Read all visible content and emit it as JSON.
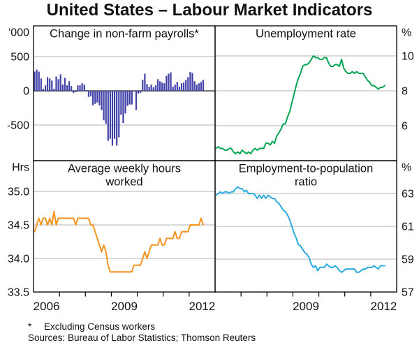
{
  "title": "United States – Labour Market Indicators",
  "footnote": {
    "marker": "*",
    "text": "Excluding Census workers"
  },
  "sources": "Sources: Bureau of Labor Statistics; Thomson Reuters",
  "colors": {
    "bars": "#4040a8",
    "unemployment_line": "#00a651",
    "hours_line": "#f7941e",
    "epr_line": "#29abe2",
    "gridline": "#b3b3b3",
    "axis": "#000000",
    "zero_line": "#4d4d4d"
  },
  "xaxis": {
    "xlim": [
      2006,
      2013
    ],
    "tick_years": [
      2007,
      2008,
      2009,
      2010,
      2011,
      2012
    ],
    "left_labels": [
      {
        "t": 2006.5,
        "label": "2006"
      },
      {
        "t": 2009.5,
        "label": "2009"
      },
      {
        "t": 2012.5,
        "label": "2012"
      }
    ],
    "right_labels": [
      {
        "t": 2009.5,
        "label": "2009"
      },
      {
        "t": 2012.5,
        "label": "2012"
      }
    ]
  },
  "chart_data": [
    {
      "id": "payrolls",
      "type": "bar",
      "position": "top-left",
      "title": "Change in non-farm payrolls*",
      "unit_label": "’000",
      "axis_side": "left",
      "color": "#4040a8",
      "ylim": [
        -1020,
        949
      ],
      "zero_line": true,
      "yticks": [
        {
          "v": 500,
          "label": "500"
        },
        {
          "v": 0,
          "label": "0"
        },
        {
          "v": -500,
          "label": "-500"
        }
      ],
      "x_start": 2006,
      "frequency": "monthly",
      "values": [
        280,
        310,
        280,
        180,
        30,
        80,
        200,
        180,
        150,
        30,
        210,
        170,
        240,
        90,
        190,
        80,
        140,
        70,
        -30,
        -20,
        80,
        80,
        110,
        90,
        10,
        -90,
        -80,
        -210,
        -190,
        -170,
        -210,
        -280,
        -430,
        -480,
        -730,
        -700,
        -800,
        -700,
        -800,
        -680,
        -350,
        -470,
        -330,
        -220,
        -200,
        -200,
        -10,
        -280,
        -40,
        -30,
        160,
        250,
        100,
        60,
        90,
        50,
        80,
        170,
        140,
        120,
        110,
        220,
        250,
        270,
        60,
        90,
        130,
        60,
        110,
        120,
        160,
        200,
        275,
        260,
        140,
        90,
        110,
        130,
        160
      ]
    },
    {
      "id": "unemployment",
      "type": "line",
      "position": "top-right",
      "title": "Unemployment rate",
      "unit_label": "%",
      "axis_side": "right",
      "color": "#00a651",
      "ylim": [
        4,
        11.72
      ],
      "zero_line": false,
      "yticks": [
        {
          "v": 10,
          "label": "10"
        },
        {
          "v": 8,
          "label": "8"
        },
        {
          "v": 6,
          "label": "6"
        }
      ],
      "x_start": 2006,
      "frequency": "monthly",
      "values": [
        4.7,
        4.8,
        4.7,
        4.7,
        4.6,
        4.6,
        4.7,
        4.7,
        4.5,
        4.4,
        4.5,
        4.4,
        4.6,
        4.5,
        4.4,
        4.5,
        4.4,
        4.6,
        4.7,
        4.6,
        4.7,
        4.7,
        4.7,
        5.0,
        5.0,
        4.9,
        5.1,
        5.0,
        5.4,
        5.6,
        5.8,
        6.1,
        6.1,
        6.5,
        6.8,
        7.3,
        7.8,
        8.3,
        8.7,
        9.0,
        9.4,
        9.5,
        9.5,
        9.6,
        9.8,
        10.0,
        9.9,
        9.9,
        9.8,
        9.8,
        9.9,
        9.9,
        9.6,
        9.4,
        9.4,
        9.5,
        9.5,
        9.4,
        9.8,
        9.3,
        9.1,
        9.0,
        9.0,
        9.1,
        9.0,
        9.1,
        9.0,
        9.0,
        9.0,
        8.8,
        8.6,
        8.5,
        8.3,
        8.3,
        8.2,
        8.1,
        8.2,
        8.2,
        8.3
      ]
    },
    {
      "id": "hours",
      "type": "line",
      "position": "bottom-left",
      "title": "Average weekly hours\nworked",
      "unit_label": "Hrs",
      "axis_side": "left",
      "color": "#f7941e",
      "ylim": [
        33.5,
        35.458
      ],
      "zero_line": false,
      "yticks": [
        {
          "v": 35.0,
          "label": "35.0"
        },
        {
          "v": 34.5,
          "label": "34.5"
        },
        {
          "v": 34.0,
          "label": "34.0"
        },
        {
          "v": 33.5,
          "label": "33.5"
        }
      ],
      "x_start": 2006,
      "frequency": "monthly",
      "values": [
        34.4,
        34.5,
        34.6,
        34.5,
        34.6,
        34.6,
        34.5,
        34.6,
        34.5,
        34.7,
        34.5,
        34.6,
        34.6,
        34.6,
        34.6,
        34.6,
        34.6,
        34.6,
        34.6,
        34.5,
        34.6,
        34.6,
        34.6,
        34.6,
        34.6,
        34.6,
        34.5,
        34.5,
        34.4,
        34.3,
        34.2,
        34.1,
        34.2,
        34.1,
        33.9,
        33.8,
        33.8,
        33.8,
        33.8,
        33.8,
        33.8,
        33.8,
        33.8,
        33.8,
        33.8,
        33.8,
        33.9,
        33.9,
        33.9,
        33.9,
        34.0,
        34.1,
        34.0,
        34.1,
        34.2,
        34.2,
        34.2,
        34.2,
        34.3,
        34.2,
        34.2,
        34.3,
        34.3,
        34.3,
        34.3,
        34.4,
        34.3,
        34.3,
        34.4,
        34.4,
        34.4,
        34.4,
        34.5,
        34.5,
        34.5,
        34.5,
        34.5,
        34.6,
        34.5
      ]
    },
    {
      "id": "employment-to-population",
      "type": "line",
      "position": "bottom-right",
      "title": "Employment-to-population\nratio",
      "unit_label": "%",
      "axis_side": "right",
      "color": "#29abe2",
      "ylim": [
        57,
        65
      ],
      "zero_line": false,
      "yticks": [
        {
          "v": 63,
          "label": "63"
        },
        {
          "v": 61,
          "label": "61"
        },
        {
          "v": 59,
          "label": "59"
        },
        {
          "v": 57,
          "label": "57"
        }
      ],
      "x_start": 2006,
      "frequency": "monthly",
      "values": [
        62.9,
        63.0,
        63.1,
        63.0,
        63.1,
        63.1,
        63.0,
        63.1,
        63.1,
        63.3,
        63.4,
        63.3,
        63.3,
        63.1,
        63.2,
        63.0,
        63.0,
        63.0,
        62.9,
        62.7,
        62.9,
        62.7,
        62.9,
        62.7,
        62.9,
        62.8,
        62.7,
        62.7,
        62.5,
        62.4,
        62.2,
        62.0,
        61.9,
        61.7,
        61.4,
        61.0,
        60.6,
        60.3,
        59.9,
        59.8,
        59.6,
        59.4,
        59.3,
        59.1,
        58.7,
        58.5,
        58.6,
        58.3,
        58.5,
        58.5,
        58.5,
        58.7,
        58.6,
        58.5,
        58.5,
        58.6,
        58.5,
        58.3,
        58.2,
        58.3,
        58.4,
        58.4,
        58.4,
        58.4,
        58.4,
        58.2,
        58.2,
        58.3,
        58.4,
        58.4,
        58.5,
        58.5,
        58.5,
        58.6,
        58.5,
        58.4,
        58.6,
        58.6,
        58.6
      ]
    }
  ]
}
